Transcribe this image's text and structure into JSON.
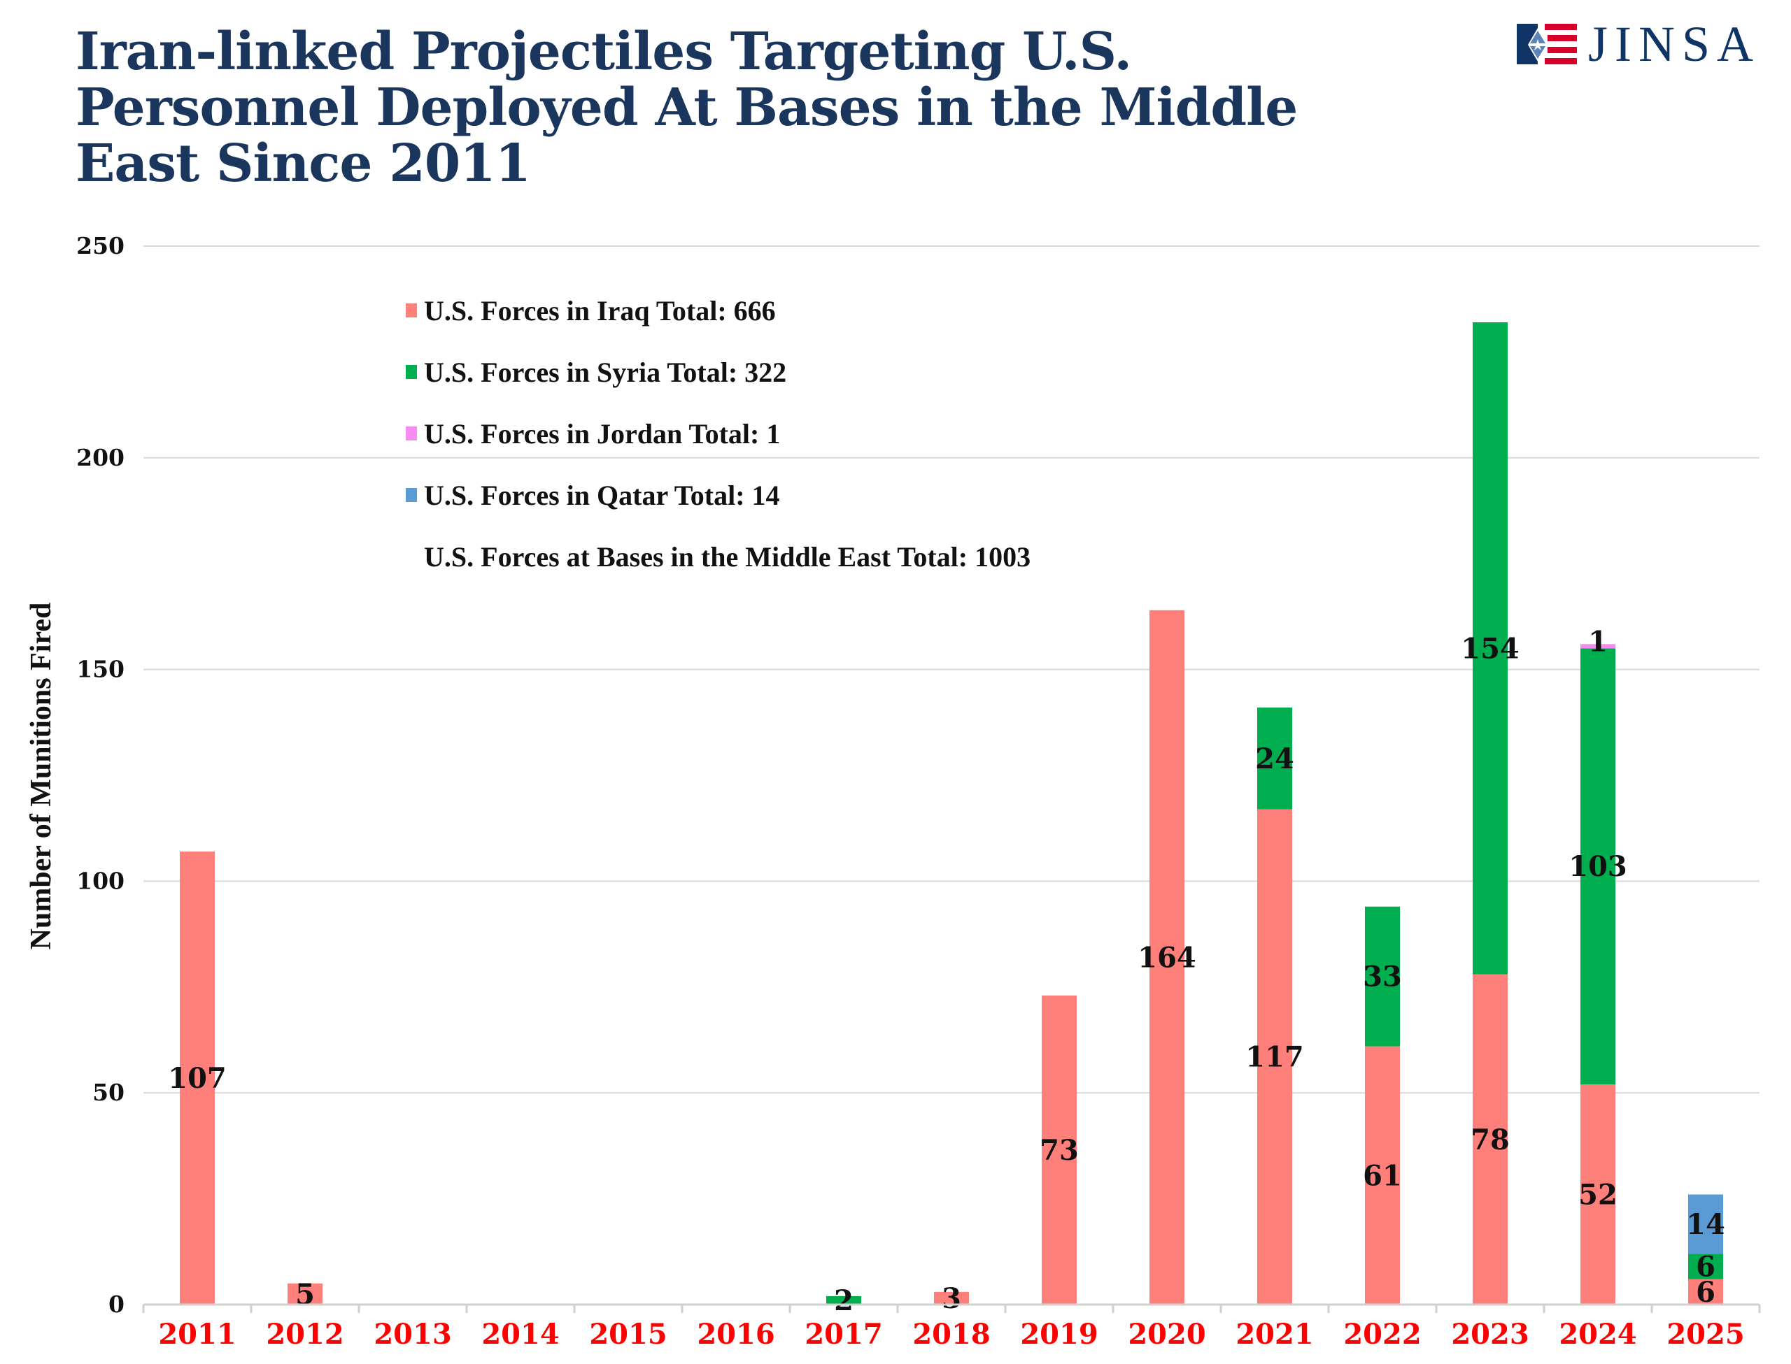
{
  "header": {
    "title": "Iran-linked Projectiles Targeting U.S. Personnel Deployed At Bases in the Middle East Since 2011",
    "logo_text": "JINSA",
    "logo_icon": "star-of-david-flag-icon"
  },
  "colors": {
    "title": "#1b365d",
    "iraq": "#ff7f7a",
    "syria": "#00ad4f",
    "jordan": "#f78bf2",
    "qatar": "#5b9bd5",
    "x_tick": "#ff0000",
    "grid": "#d9d9d9"
  },
  "chart_data": {
    "type": "bar",
    "stacked": true,
    "title": "Iran-linked Projectiles Targeting U.S. Personnel Deployed At Bases in the Middle East Since 2011",
    "xlabel": "",
    "ylabel": "Number of Munitions Fired",
    "ylim": [
      0,
      250
    ],
    "yticks": [
      0,
      50,
      100,
      150,
      200,
      250
    ],
    "grid": true,
    "legend_position": "top-left",
    "categories": [
      "2011",
      "2012",
      "2013",
      "2014",
      "2015",
      "2016",
      "2017",
      "2018",
      "2019",
      "2020",
      "2021",
      "2022",
      "2023",
      "2024",
      "2025"
    ],
    "series": [
      {
        "name": "U.S. Forces in Iraq",
        "key": "iraq",
        "legend_label": "U.S. Forces in Iraq Total: 666",
        "values": [
          107,
          5,
          0,
          0,
          0,
          0,
          0,
          3,
          73,
          164,
          117,
          61,
          78,
          52,
          6
        ]
      },
      {
        "name": "U.S. Forces in Syria",
        "key": "syria",
        "legend_label": "U.S. Forces in Syria Total: 322",
        "values": [
          0,
          0,
          0,
          0,
          0,
          0,
          2,
          0,
          0,
          0,
          24,
          33,
          154,
          103,
          6
        ]
      },
      {
        "name": "U.S. Forces in Jordan",
        "key": "jordan",
        "legend_label": "U.S. Forces in Jordan Total: 1",
        "values": [
          0,
          0,
          0,
          0,
          0,
          0,
          0,
          0,
          0,
          0,
          0,
          0,
          0,
          1,
          0
        ]
      },
      {
        "name": "U.S. Forces in Qatar",
        "key": "qatar",
        "legend_label": "U.S. Forces in Qatar Total: 14",
        "values": [
          0,
          0,
          0,
          0,
          0,
          0,
          0,
          0,
          0,
          0,
          0,
          0,
          0,
          0,
          14
        ]
      }
    ],
    "legend_extra": "U.S. Forces at Bases in the Middle East Total: 1003"
  }
}
